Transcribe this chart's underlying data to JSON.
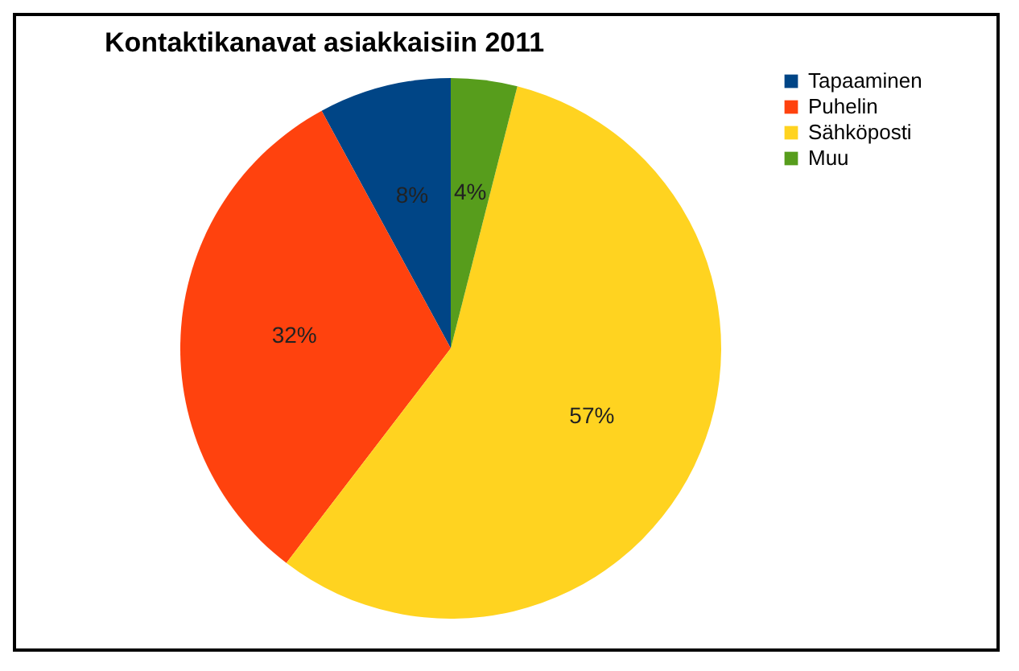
{
  "chart_data": {
    "type": "pie",
    "title": "Kontaktikanavat asiakkaisiin 2011",
    "categories": [
      "Tapaaminen",
      "Puhelin",
      "Sähköposti",
      "Muu"
    ],
    "values": [
      8,
      32,
      57,
      4
    ],
    "colors": [
      "#004586",
      "#ff420e",
      "#ffd320",
      "#579d1c"
    ],
    "value_labels": [
      "8%",
      "32%",
      "57%",
      "4%"
    ],
    "legend": "right"
  }
}
